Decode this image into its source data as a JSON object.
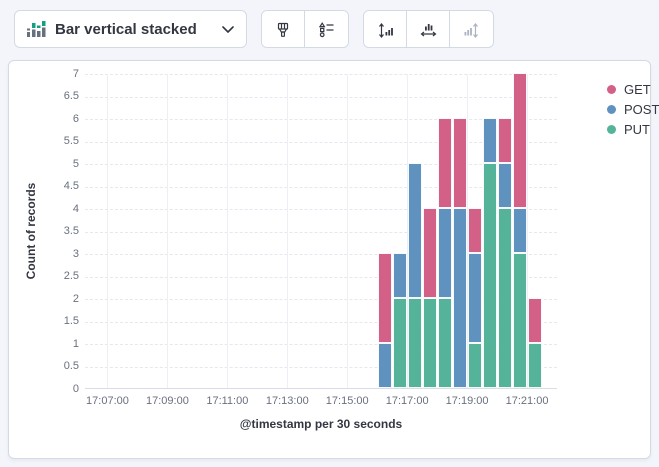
{
  "toolbar": {
    "chart_type_selector": {
      "label": "Bar vertical stacked",
      "icon": "bar-vertical-stacked-icon",
      "chevron_icon": "chevron-down-icon"
    },
    "button_groups": [
      {
        "buttons": [
          {
            "icon": "paint-brush-icon",
            "disabled": false
          },
          {
            "icon": "shape-list-icon",
            "disabled": false
          }
        ]
      },
      {
        "buttons": [
          {
            "icon": "left-axis-arrows-icon",
            "disabled": false
          },
          {
            "icon": "bottom-axis-arrows-icon",
            "disabled": false
          },
          {
            "icon": "right-axis-arrows-icon",
            "disabled": true
          }
        ]
      }
    ]
  },
  "colors": {
    "get": "#D36086",
    "post": "#6092C0",
    "put": "#54B399",
    "panel_border": "#D3DAE6",
    "text": "#343741",
    "tick_text": "#69707D"
  },
  "chart_data": {
    "type": "bar",
    "stacked": true,
    "title": "",
    "xlabel": "@timestamp per 30 seconds",
    "ylabel": "Count of records",
    "categories": [
      "17:16:00",
      "17:16:30",
      "17:17:00",
      "17:17:30",
      "17:18:00",
      "17:18:30",
      "17:19:00",
      "17:19:30",
      "17:20:00",
      "17:20:30",
      "17:21:00"
    ],
    "series": [
      {
        "name": "GET",
        "color": "#D36086",
        "values": [
          2,
          0,
          0,
          2,
          2,
          2,
          1,
          0,
          1,
          3,
          1
        ]
      },
      {
        "name": "POST",
        "color": "#6092C0",
        "values": [
          1,
          1,
          3,
          0,
          2,
          4,
          2,
          1,
          1,
          1,
          0
        ]
      },
      {
        "name": "PUT",
        "color": "#54B399",
        "values": [
          0,
          2,
          2,
          2,
          2,
          0,
          1,
          5,
          4,
          3,
          1
        ]
      }
    ],
    "stack_order_bottom_to_top": [
      "PUT",
      "POST",
      "GET"
    ],
    "bucket_seconds": 30,
    "ylim": [
      0,
      7
    ],
    "ytick_step": 0.5,
    "xlim": [
      "17:06:15",
      "17:22:00"
    ],
    "xticks": [
      "17:07:00",
      "17:09:00",
      "17:11:00",
      "17:13:00",
      "17:15:00",
      "17:17:00",
      "17:19:00",
      "17:21:00"
    ],
    "legend_position": "right",
    "grid": {
      "horizontal": "dashed",
      "vertical": "solid"
    }
  }
}
